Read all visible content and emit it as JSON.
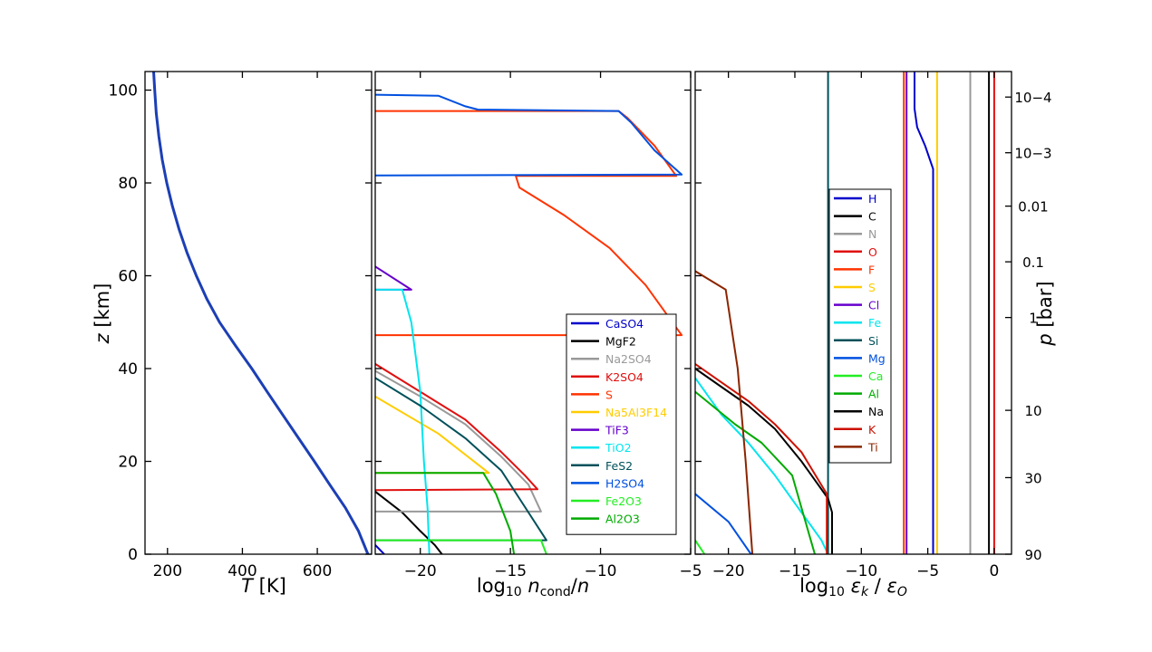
{
  "chart_data": [
    {
      "type": "line",
      "xlabel": "T [K]",
      "ylabel": "z [km]",
      "xlim": [
        140,
        745
      ],
      "ylim": [
        0,
        104
      ],
      "xticks": [
        200,
        400,
        600
      ],
      "yticks": [
        0,
        20,
        40,
        60,
        80,
        100
      ],
      "grid": false,
      "series": [
        {
          "color": "#1c3fb5",
          "points": [
            [
              163,
              104
            ],
            [
              166,
              100
            ],
            [
              170,
              95
            ],
            [
              177,
              90
            ],
            [
              186,
              85
            ],
            [
              198,
              80
            ],
            [
              213,
              75
            ],
            [
              231,
              70
            ],
            [
              252,
              65
            ],
            [
              277,
              60
            ],
            [
              305,
              55
            ],
            [
              339,
              50
            ],
            [
              381,
              45
            ],
            [
              425,
              40
            ],
            [
              466,
              35
            ],
            [
              508,
              30
            ],
            [
              550,
              25
            ],
            [
              592,
              20
            ],
            [
              633,
              15
            ],
            [
              675,
              10
            ],
            [
              710,
              5
            ],
            [
              735,
              0
            ]
          ]
        }
      ]
    },
    {
      "type": "line",
      "xlabel": "log10 ncond/n",
      "xlim": [
        -22.5,
        -5
      ],
      "ylim": [
        0,
        104
      ],
      "xticks": [
        -20,
        -15,
        -10,
        -5
      ],
      "grid": false,
      "legend_position": "lower-right",
      "series": [
        {
          "name": "CaSO4",
          "color": "#0000cc",
          "points": [
            [
              -22.5,
              2
            ],
            [
              -22.0,
              0
            ]
          ]
        },
        {
          "name": "MgF2",
          "color": "#000000",
          "points": [
            [
              -22.5,
              13.5
            ],
            [
              -21.0,
              9
            ],
            [
              -20.0,
              5
            ],
            [
              -19.2,
              2
            ],
            [
              -18.8,
              0
            ]
          ]
        },
        {
          "name": "Na2SO4",
          "color": "#999999",
          "points": [
            [
              -22.5,
              39.5
            ],
            [
              -20.0,
              34
            ],
            [
              -17.5,
              28
            ],
            [
              -15.5,
              21
            ],
            [
              -14.0,
              15
            ],
            [
              -13.3,
              9.2
            ],
            [
              -22.5,
              9.2
            ]
          ]
        },
        {
          "name": "K2SO4",
          "color": "#e01010",
          "points": [
            [
              -22.5,
              41
            ],
            [
              -20.0,
              35
            ],
            [
              -17.5,
              29
            ],
            [
              -15.5,
              22
            ],
            [
              -14.2,
              17
            ],
            [
              -13.5,
              14
            ],
            [
              -22.5,
              13.8
            ]
          ]
        },
        {
          "name": "S",
          "color": "#ff3300",
          "points": [
            [
              -22.5,
              95.5
            ],
            [
              -9.0,
              95.5
            ],
            [
              -8.5,
              94
            ],
            [
              -7.0,
              88
            ],
            [
              -5.8,
              81.5
            ],
            [
              -14.7,
              81.5
            ],
            [
              -14.5,
              79
            ],
            [
              -12.0,
              73
            ],
            [
              -9.5,
              66
            ],
            [
              -7.5,
              58
            ],
            [
              -5.5,
              47.2
            ],
            [
              -22.5,
              47.2
            ]
          ]
        },
        {
          "name": "Na5Al3F14",
          "color": "#ffcc00",
          "points": [
            [
              -22.5,
              34
            ],
            [
              -19.0,
              26
            ],
            [
              -16.2,
              17.5
            ],
            [
              -22.5,
              17.5
            ]
          ]
        },
        {
          "name": "TiF3",
          "color": "#6600cc",
          "points": [
            [
              -22.5,
              62
            ],
            [
              -20.5,
              57
            ],
            [
              -22.5,
              57
            ]
          ]
        },
        {
          "name": "TiO2",
          "color": "#00e5ee",
          "points": [
            [
              -22.5,
              57
            ],
            [
              -21.0,
              57
            ],
            [
              -20.5,
              50
            ],
            [
              -20.0,
              35
            ],
            [
              -19.8,
              20
            ],
            [
              -19.6,
              10
            ],
            [
              -19.5,
              0
            ]
          ]
        },
        {
          "name": "FeS2",
          "color": "#00505a",
          "points": [
            [
              -22.5,
              38
            ],
            [
              -20.0,
              32
            ],
            [
              -17.5,
              25
            ],
            [
              -15.5,
              18
            ],
            [
              -14.5,
              12
            ],
            [
              -13.0,
              3
            ],
            [
              -22.5,
              3
            ]
          ]
        },
        {
          "name": "H2SO4",
          "color": "#0050e0",
          "points": [
            [
              -22.5,
              99
            ],
            [
              -19.0,
              98.8
            ],
            [
              -17.5,
              96.5
            ],
            [
              -16.8,
              95.8
            ],
            [
              -9.0,
              95.5
            ],
            [
              -8.3,
              93
            ],
            [
              -7.0,
              87
            ],
            [
              -5.5,
              81.8
            ],
            [
              -22.5,
              81.6
            ]
          ]
        },
        {
          "name": "Fe2O3",
          "color": "#22ee22",
          "points": [
            [
              -22.5,
              3
            ],
            [
              -13.3,
              3
            ],
            [
              -13.0,
              0
            ]
          ]
        },
        {
          "name": "Al2O3",
          "color": "#00aa00",
          "points": [
            [
              -22.5,
              17.5
            ],
            [
              -16.5,
              17.5
            ],
            [
              -15.8,
              13
            ],
            [
              -15.0,
              5
            ],
            [
              -14.8,
              0
            ]
          ]
        }
      ]
    },
    {
      "type": "line",
      "xlabel": "log10 εk / εO",
      "ylabel_right": "p [bar]",
      "xlim": [
        -22.5,
        1.3
      ],
      "ylim": [
        0,
        104
      ],
      "xticks": [
        -20,
        -15,
        -10,
        -5,
        0
      ],
      "right_ticks": [
        {
          "label": "10−4",
          "z": 98.5
        },
        {
          "label": "10−3",
          "z": 86.5
        },
        {
          "label": "0.01",
          "z": 75
        },
        {
          "label": "0.1",
          "z": 63
        },
        {
          "label": "1",
          "z": 51
        },
        {
          "label": "10",
          "z": 31
        },
        {
          "label": "30",
          "z": 16.5
        },
        {
          "label": "90",
          "z": 0
        }
      ],
      "grid": false,
      "legend_position": "center",
      "series": [
        {
          "name": "H",
          "color": "#0000cc",
          "points": [
            [
              -6.0,
              104
            ],
            [
              -6.0,
              96
            ],
            [
              -5.8,
              92
            ],
            [
              -5.2,
              88
            ],
            [
              -4.6,
              83
            ],
            [
              -4.6,
              0
            ]
          ]
        },
        {
          "name": "C",
          "color": "#000000",
          "points": [
            [
              -0.4,
              104
            ],
            [
              -0.4,
              0
            ]
          ]
        },
        {
          "name": "N",
          "color": "#999999",
          "points": [
            [
              -1.8,
              104
            ],
            [
              -1.8,
              0
            ]
          ]
        },
        {
          "name": "O",
          "color": "#e01010",
          "points": [
            [
              0.0,
              104
            ],
            [
              0.0,
              0
            ]
          ]
        },
        {
          "name": "F",
          "color": "#ff3300",
          "points": [
            [
              -6.8,
              104
            ],
            [
              -6.8,
              0
            ]
          ]
        },
        {
          "name": "S",
          "color": "#ffcc00",
          "points": [
            [
              -4.3,
              104
            ],
            [
              -4.3,
              0
            ]
          ]
        },
        {
          "name": "Cl",
          "color": "#6600cc",
          "points": [
            [
              -6.6,
              104
            ],
            [
              -6.6,
              0
            ]
          ]
        },
        {
          "name": "Fe",
          "color": "#00e5ee",
          "points": [
            [
              -22.5,
              38
            ],
            [
              -20.5,
              30
            ],
            [
              -18.5,
              24
            ],
            [
              -16.5,
              17
            ],
            [
              -14.5,
              9
            ],
            [
              -13.0,
              3
            ],
            [
              -12.5,
              0
            ]
          ]
        },
        {
          "name": "Si",
          "color": "#00505a",
          "points": [
            [
              -12.5,
              104
            ],
            [
              -12.5,
              0
            ]
          ]
        },
        {
          "name": "Mg",
          "color": "#0050e0",
          "points": [
            [
              -22.5,
              13
            ],
            [
              -20.0,
              7
            ],
            [
              -18.3,
              0
            ]
          ]
        },
        {
          "name": "Ca",
          "color": "#22ee22",
          "points": [
            [
              -22.5,
              3
            ],
            [
              -21.8,
              0
            ]
          ]
        },
        {
          "name": "Al",
          "color": "#00aa00",
          "points": [
            [
              -22.5,
              35
            ],
            [
              -19.5,
              28
            ],
            [
              -17.5,
              24
            ],
            [
              -15.2,
              17
            ],
            [
              -14.3,
              8
            ],
            [
              -13.5,
              0
            ]
          ]
        },
        {
          "name": "Na",
          "color": "#000000",
          "points": [
            [
              -22.5,
              40
            ],
            [
              -20.5,
              36
            ],
            [
              -18.5,
              32
            ],
            [
              -16.5,
              27
            ],
            [
              -14.5,
              20
            ],
            [
              -12.5,
              12
            ],
            [
              -12.2,
              9
            ],
            [
              -12.2,
              0
            ]
          ]
        },
        {
          "name": "K",
          "color": "#cc1100",
          "points": [
            [
              -22.5,
              41
            ],
            [
              -20.5,
              37
            ],
            [
              -18.5,
              33
            ],
            [
              -16.5,
              28
            ],
            [
              -14.5,
              22
            ],
            [
              -12.6,
              13
            ],
            [
              -12.6,
              0
            ]
          ]
        },
        {
          "name": "Ti",
          "color": "#8b2500",
          "points": [
            [
              -22.5,
              61
            ],
            [
              -20.2,
              57
            ],
            [
              -19.3,
              40
            ],
            [
              -18.7,
              20
            ],
            [
              -18.2,
              0
            ]
          ]
        }
      ]
    }
  ]
}
